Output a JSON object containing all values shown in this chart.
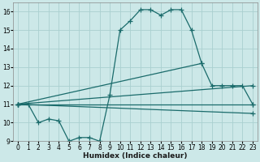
{
  "xlabel": "Humidex (Indice chaleur)",
  "xlim": [
    -0.5,
    23.5
  ],
  "ylim": [
    9,
    16.5
  ],
  "xticks": [
    0,
    1,
    2,
    3,
    4,
    5,
    6,
    7,
    8,
    9,
    10,
    11,
    12,
    13,
    14,
    15,
    16,
    17,
    18,
    19,
    20,
    21,
    22,
    23
  ],
  "yticks": [
    9,
    10,
    11,
    12,
    13,
    14,
    15,
    16
  ],
  "bg_color": "#cce8e8",
  "line_color": "#1a6b6b",
  "grid_color": "#aad0d0",
  "lines": [
    {
      "x": [
        0,
        1,
        2,
        3,
        4,
        5,
        6,
        7,
        8,
        9,
        10,
        11,
        12,
        13,
        14,
        15,
        16,
        17,
        18,
        19,
        20,
        21,
        22,
        23
      ],
      "y": [
        11,
        11,
        10,
        10.2,
        10.1,
        9.0,
        9.2,
        9.2,
        9.0,
        11.5,
        15.0,
        15.5,
        16.1,
        16.1,
        15.8,
        16.1,
        16.1,
        15.0,
        13.2,
        12.0,
        12.0,
        12.0,
        12.0,
        11.0
      ]
    },
    {
      "x": [
        0,
        18
      ],
      "y": [
        11,
        13.2
      ]
    },
    {
      "x": [
        0,
        23
      ],
      "y": [
        11,
        12.0
      ]
    },
    {
      "x": [
        0,
        23
      ],
      "y": [
        11,
        11.0
      ]
    },
    {
      "x": [
        0,
        23
      ],
      "y": [
        11,
        10.5
      ]
    }
  ],
  "marker": "+",
  "markersize": 4,
  "linewidth": 0.9,
  "tick_fontsize": 5.5,
  "xlabel_fontsize": 6.5
}
